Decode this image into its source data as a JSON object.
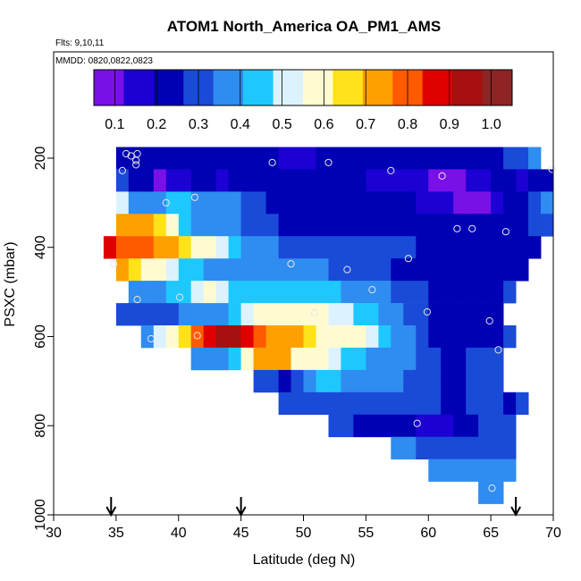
{
  "chart_data": {
    "type": "heatmap",
    "title": "ATOM1 North_America OA_PM1_AMS",
    "subtitle_lines": [
      "Flts: 9,10,11",
      "MMDD: 0820,0822,0823"
    ],
    "xlabel": "Latitude (deg N)",
    "ylabel": "PSXC (mbar)",
    "xlim": [
      30,
      70
    ],
    "ylim": [
      1000,
      0
    ],
    "xticks": [
      30,
      35,
      40,
      45,
      50,
      55,
      60,
      65,
      70
    ],
    "yticks": [
      200,
      400,
      600,
      800,
      1000
    ],
    "grid": false,
    "legend": "top colorbar",
    "colorbar": {
      "ticks": [
        0.1,
        0.2,
        0.3,
        0.4,
        0.5,
        0.6,
        0.7,
        0.8,
        0.9,
        1.0
      ],
      "tick_labels": [
        "0.1",
        "0.2",
        "0.3",
        "0.4",
        "0.5",
        "0.6",
        "0.7",
        "0.8",
        "0.9",
        "1.0"
      ],
      "range": [
        0.05,
        1.05
      ],
      "colors": [
        "#7a10e8",
        "#1c00d4",
        "#0000b4",
        "#1a4ad8",
        "#2f8cf0",
        "#1ec8ff",
        "#ddf2ff",
        "#fffbd0",
        "#ffe21a",
        "#ffa000",
        "#ff5a00",
        "#e00000",
        "#a61010",
        "#8e2424"
      ]
    },
    "bin_width_deg": 1,
    "bin_height_mbar": 50,
    "rows": [
      {
        "p": 200,
        "lat_start": 35,
        "values": [
          0.2,
          0.2,
          0.2,
          0.2,
          0.2,
          0.2,
          0.2,
          0.2,
          0.2,
          0.2,
          0.2,
          0.2,
          0.2,
          0.15,
          0.15,
          0.15,
          0.2,
          0.2,
          0.2,
          0.2,
          0.2,
          0.2,
          0.2,
          0.2,
          0.2,
          0.2,
          0.2,
          0.2,
          0.2,
          0.2,
          0.25,
          0.3,
          0.3,
          0.35
        ]
      },
      {
        "p": 250,
        "lat_start": 35,
        "values": [
          0.3,
          0.25,
          0.2,
          0.12,
          0.15,
          0.15,
          0.2,
          0.2,
          0.15,
          0.2,
          0.2,
          0.2,
          0.2,
          0.2,
          0.2,
          0.2,
          0.2,
          0.2,
          0.2,
          0.2,
          0.15,
          0.15,
          0.15,
          0.15,
          0.15,
          0.12,
          0.12,
          0.12,
          0.15,
          0.15,
          0.2,
          0.2,
          0.15,
          0.2,
          0.2
        ]
      },
      {
        "p": 300,
        "lat_start": 35,
        "values": [
          0.5,
          0.35,
          0.35,
          0.4,
          0.45,
          0.45,
          0.4,
          0.4,
          0.35,
          0.35,
          0.3,
          0.3,
          0.25,
          0.25,
          0.25,
          0.2,
          0.2,
          0.2,
          0.2,
          0.2,
          0.2,
          0.2,
          0.2,
          0.2,
          0.15,
          0.15,
          0.15,
          0.12,
          0.08,
          0.08,
          0.15,
          0.2,
          0.25,
          0.3,
          0.35
        ]
      },
      {
        "p": 350,
        "lat_start": 35,
        "values": [
          0.75,
          0.75,
          0.7,
          0.65,
          0.55,
          0.45,
          0.4,
          0.4,
          0.35,
          0.35,
          0.3,
          0.3,
          0.3,
          0.25,
          0.25,
          0.25,
          0.2,
          0.2,
          0.2,
          0.2,
          0.2,
          0.2,
          0.2,
          0.2,
          0.2,
          0.2,
          0.2,
          0.2,
          0.2,
          0.2,
          0.2,
          0.2,
          0.25,
          0.3,
          0.3
        ]
      },
      {
        "p": 400,
        "lat_start": 34,
        "values": [
          0.9,
          0.8,
          0.8,
          0.8,
          0.75,
          0.7,
          0.65,
          0.6,
          0.55,
          0.5,
          0.45,
          0.4,
          0.35,
          0.35,
          0.3,
          0.3,
          0.3,
          0.3,
          0.3,
          0.3,
          0.3,
          0.3,
          0.3,
          0.3,
          0.3,
          0.25,
          0.25,
          0.25,
          0.2,
          0.2,
          0.2,
          0.2,
          0.2,
          0.2,
          0.2
        ]
      },
      {
        "p": 450,
        "lat_start": 35,
        "values": [
          0.7,
          0.65,
          0.6,
          0.55,
          0.5,
          0.45,
          0.45,
          0.4,
          0.4,
          0.4,
          0.4,
          0.4,
          0.4,
          0.35,
          0.35,
          0.35,
          0.35,
          0.3,
          0.3,
          0.3,
          0.3,
          0.3,
          0.25,
          0.25,
          0.25,
          0.2,
          0.2,
          0.2,
          0.2,
          0.2,
          0.2,
          0.2,
          0.2
        ]
      },
      {
        "p": 500,
        "lat_start": 36,
        "values": [
          0.35,
          0.4,
          0.4,
          0.45,
          0.45,
          0.5,
          0.55,
          0.5,
          0.45,
          0.45,
          0.45,
          0.45,
          0.45,
          0.45,
          0.45,
          0.45,
          0.45,
          0.4,
          0.4,
          0.35,
          0.35,
          0.3,
          0.3,
          0.3,
          0.25,
          0.25,
          0.2,
          0.2,
          0.2,
          0.2,
          0.3
        ]
      },
      {
        "p": 550,
        "lat_start": 35,
        "values": [
          0.3,
          0.3,
          0.3,
          0.3,
          0.3,
          0.35,
          0.35,
          0.35,
          0.4,
          0.45,
          0.5,
          0.55,
          0.55,
          0.6,
          0.6,
          0.6,
          0.55,
          0.5,
          0.5,
          0.45,
          0.45,
          0.4,
          0.35,
          0.3,
          0.3,
          0.25,
          0.2,
          0.2,
          0.2,
          0.2,
          0.25
        ]
      },
      {
        "p": 600,
        "lat_start": 37,
        "values": [
          0.35,
          0.5,
          0.55,
          0.65,
          0.8,
          0.9,
          0.95,
          0.95,
          0.9,
          0.8,
          0.75,
          0.7,
          0.7,
          0.65,
          0.6,
          0.55,
          0.55,
          0.55,
          0.5,
          0.45,
          0.4,
          0.35,
          0.3,
          0.25,
          0.2,
          0.2,
          0.2,
          0.2,
          0.25,
          0.3
        ]
      },
      {
        "p": 650,
        "lat_start": 41,
        "values": [
          0.4,
          0.4,
          0.35,
          0.45,
          0.55,
          0.75,
          0.75,
          0.7,
          0.6,
          0.55,
          0.55,
          0.5,
          0.45,
          0.45,
          0.4,
          0.4,
          0.35,
          0.35,
          0.3,
          0.3,
          0.25,
          0.25,
          0.3,
          0.3,
          0.3
        ]
      },
      {
        "p": 700,
        "lat_start": 46,
        "values": [
          0.3,
          0.3,
          0.25,
          0.3,
          0.4,
          0.45,
          0.45,
          0.4,
          0.4,
          0.35,
          0.35,
          0.35,
          0.3,
          0.3,
          0.3,
          0.25,
          0.25,
          0.3,
          0.3,
          0.3
        ]
      },
      {
        "p": 750,
        "lat_start": 48,
        "values": [
          0.3,
          0.3,
          0.3,
          0.3,
          0.3,
          0.3,
          0.3,
          0.3,
          0.3,
          0.3,
          0.3,
          0.3,
          0.3,
          0.2,
          0.2,
          0.3,
          0.3,
          0.3,
          0.25,
          0.3
        ]
      },
      {
        "p": 800,
        "lat_start": 52,
        "values": [
          0.3,
          0.3,
          0.25,
          0.25,
          0.2,
          0.2,
          0.2,
          0.15,
          0.15,
          0.15,
          0.2,
          0.25,
          0.3,
          0.3,
          0.3
        ]
      },
      {
        "p": 850,
        "lat_start": 57,
        "values": [
          0.35,
          0.35,
          0.3,
          0.3,
          0.3,
          0.3,
          0.3,
          0.3,
          0.3,
          0.3
        ]
      },
      {
        "p": 900,
        "lat_start": 60,
        "values": [
          0.35,
          0.35,
          0.35,
          0.35,
          0.35,
          0.35,
          0.35
        ]
      },
      {
        "p": 950,
        "lat_start": 64,
        "values": [
          0.35,
          0.35
        ]
      }
    ],
    "points": [
      {
        "lat": 35.5,
        "p": 228
      },
      {
        "lat": 35.8,
        "p": 190
      },
      {
        "lat": 36.2,
        "p": 195
      },
      {
        "lat": 36.6,
        "p": 205
      },
      {
        "lat": 36.6,
        "p": 215
      },
      {
        "lat": 36.7,
        "p": 190
      },
      {
        "lat": 39.0,
        "p": 300
      },
      {
        "lat": 41.3,
        "p": 288
      },
      {
        "lat": 47.5,
        "p": 210
      },
      {
        "lat": 52.0,
        "p": 210
      },
      {
        "lat": 57.0,
        "p": 228
      },
      {
        "lat": 61.1,
        "p": 240
      },
      {
        "lat": 69.9,
        "p": 225
      },
      {
        "lat": 62.3,
        "p": 358
      },
      {
        "lat": 63.5,
        "p": 358
      },
      {
        "lat": 66.2,
        "p": 365
      },
      {
        "lat": 34.8,
        "p": 437
      },
      {
        "lat": 49.0,
        "p": 437
      },
      {
        "lat": 53.5,
        "p": 450
      },
      {
        "lat": 58.4,
        "p": 425
      },
      {
        "lat": 55.5,
        "p": 495
      },
      {
        "lat": 36.7,
        "p": 517
      },
      {
        "lat": 40.1,
        "p": 512
      },
      {
        "lat": 50.9,
        "p": 547
      },
      {
        "lat": 59.9,
        "p": 545
      },
      {
        "lat": 64.9,
        "p": 565
      },
      {
        "lat": 37.8,
        "p": 605
      },
      {
        "lat": 41.5,
        "p": 598
      },
      {
        "lat": 65.6,
        "p": 630
      },
      {
        "lat": 59.1,
        "p": 795
      },
      {
        "lat": 65.1,
        "p": 940
      }
    ],
    "arrows_lat": [
      34.6,
      45.0,
      67.0
    ]
  }
}
